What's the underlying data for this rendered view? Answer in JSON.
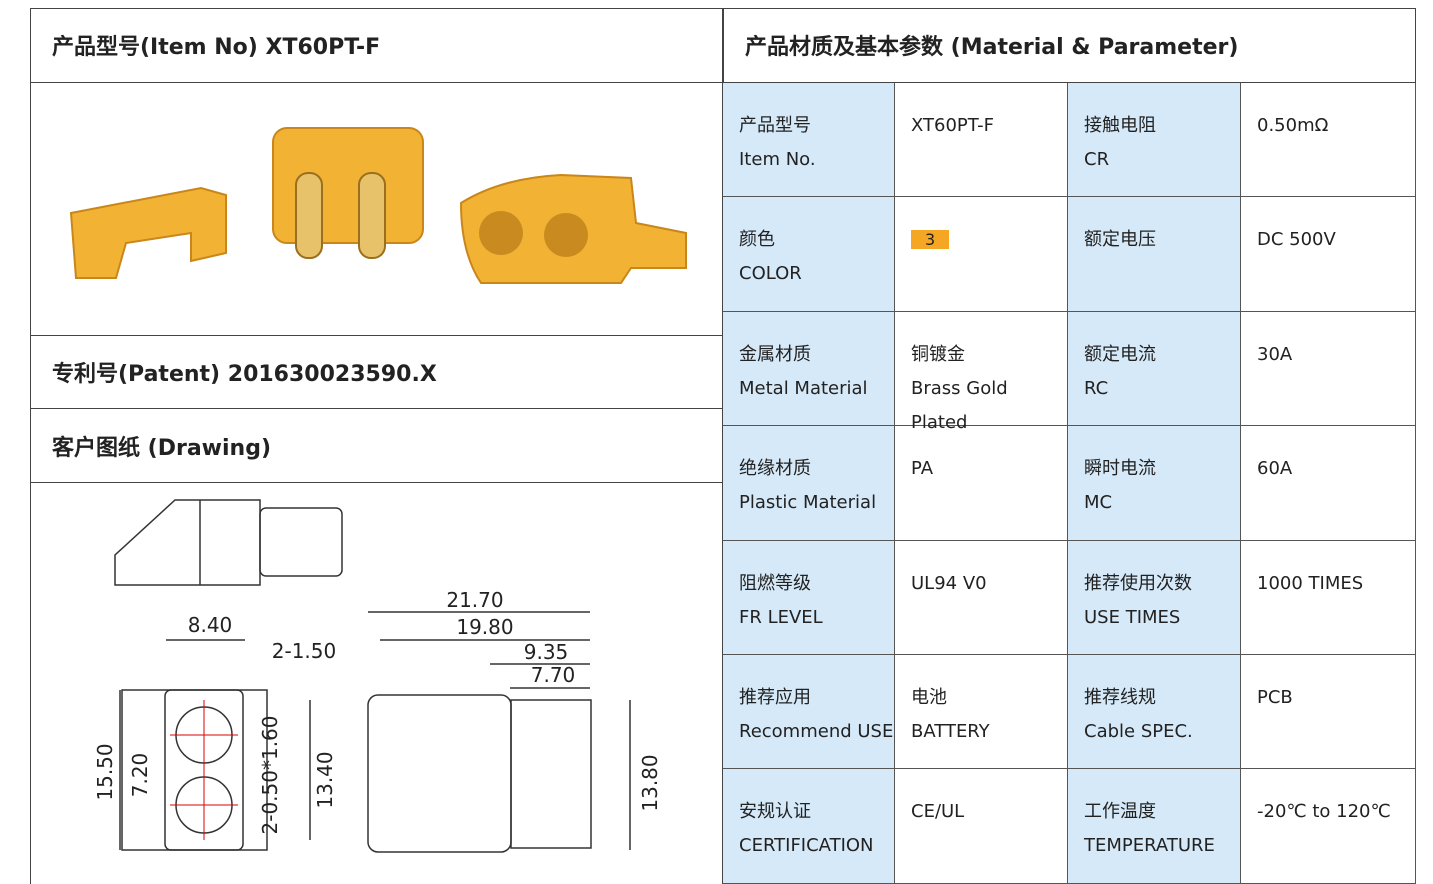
{
  "header": {
    "left": "产品型号(Item No)  XT60PT-F",
    "right": "产品材质及基本参数 (Material & Parameter)"
  },
  "patent": "专利号(Patent) 201630023590.X",
  "drawing_title": "客户图纸 (Drawing)",
  "drawing": {
    "dims": [
      "8.40",
      "2-1.50",
      "15.50",
      "7.20",
      "2-0.50*1.60",
      "13.40",
      "21.70",
      "19.80",
      "9.35",
      "7.70",
      "13.80"
    ]
  },
  "table": {
    "rows": [
      [
        [
          "产品型号",
          "Item No."
        ],
        [
          "XT60PT-F"
        ],
        [
          "接触电阻",
          "CR"
        ],
        [
          "0.50mΩ"
        ]
      ],
      [
        [
          "颜色",
          "COLOR"
        ],
        [
          "3"
        ],
        [
          "额定电压"
        ],
        [
          "DC 500V"
        ]
      ],
      [
        [
          "金属材质",
          "Metal Material"
        ],
        [
          "铜镀金",
          "Brass Gold Plated"
        ],
        [
          "额定电流",
          "RC"
        ],
        [
          "30A"
        ]
      ],
      [
        [
          "绝缘材质",
          "Plastic Material"
        ],
        [
          "PA"
        ],
        [
          "瞬时电流",
          "MC"
        ],
        [
          "60A"
        ]
      ],
      [
        [
          "阻燃等级",
          "FR LEVEL"
        ],
        [
          "UL94 V0"
        ],
        [
          "推荐使用次数",
          "USE TIMES"
        ],
        [
          "1000 TIMES"
        ]
      ],
      [
        [
          "推荐应用",
          "Recommend USE"
        ],
        [
          "电池",
          "BATTERY"
        ],
        [
          "推荐线规",
          "Cable SPEC."
        ],
        [
          "PCB"
        ]
      ],
      [
        [
          "安规认证",
          "CERTIFICATION"
        ],
        [
          "CE/UL"
        ],
        [
          "工作温度",
          "TEMPERATURE"
        ],
        [
          "-20℃ to 120℃"
        ]
      ]
    ]
  }
}
